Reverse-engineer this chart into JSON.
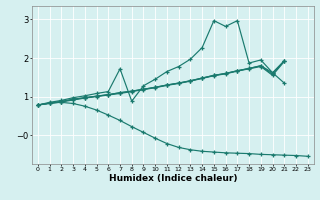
{
  "xlabel": "Humidex (Indice chaleur)",
  "bg_color": "#d6f0f0",
  "grid_color": "#ffffff",
  "line_color": "#1a7a6e",
  "xlim": [
    -0.5,
    23.5
  ],
  "ylim": [
    -0.75,
    3.35
  ],
  "line1_x": [
    0,
    1,
    2,
    3,
    4,
    5,
    6,
    7,
    8,
    9,
    10,
    11,
    12,
    13,
    14,
    15,
    16,
    17,
    18,
    19,
    20,
    21
  ],
  "line1_y": [
    0.78,
    0.85,
    0.9,
    0.97,
    1.02,
    1.08,
    1.13,
    1.72,
    0.88,
    1.28,
    1.45,
    1.65,
    1.78,
    1.97,
    2.27,
    2.97,
    2.82,
    2.97,
    1.87,
    1.95,
    1.62,
    1.35
  ],
  "line2_x": [
    0,
    1,
    2,
    3,
    4,
    5,
    6,
    7,
    8,
    9,
    10,
    11,
    12,
    13,
    14,
    15,
    16,
    17,
    18,
    19,
    20,
    21
  ],
  "line2_y": [
    0.78,
    0.83,
    0.87,
    0.93,
    0.97,
    1.01,
    1.05,
    1.1,
    1.14,
    1.19,
    1.24,
    1.3,
    1.35,
    1.41,
    1.48,
    1.55,
    1.6,
    1.67,
    1.73,
    1.8,
    1.62,
    1.93
  ],
  "line3_x": [
    0,
    1,
    2,
    3,
    4,
    5,
    6,
    7,
    8,
    9,
    10,
    11,
    12,
    13,
    14,
    15,
    16,
    17,
    18,
    19,
    20,
    21
  ],
  "line3_y": [
    0.78,
    0.83,
    0.87,
    0.93,
    0.97,
    1.01,
    1.05,
    1.1,
    1.14,
    1.19,
    1.24,
    1.3,
    1.35,
    1.41,
    1.48,
    1.55,
    1.6,
    1.67,
    1.73,
    1.8,
    1.58,
    1.93
  ],
  "line4_x": [
    0,
    1,
    2,
    3,
    4,
    5,
    6,
    7,
    8,
    9,
    10,
    11,
    12,
    13,
    14,
    15,
    16,
    17,
    18,
    19,
    20,
    21
  ],
  "line4_y": [
    0.78,
    0.82,
    0.86,
    0.91,
    0.96,
    1.0,
    1.04,
    1.08,
    1.13,
    1.18,
    1.23,
    1.29,
    1.34,
    1.4,
    1.47,
    1.54,
    1.59,
    1.66,
    1.72,
    1.78,
    1.55,
    1.91
  ],
  "line5_x": [
    0,
    1,
    2,
    3,
    4,
    5,
    6,
    7,
    8,
    9,
    10,
    11,
    12,
    13,
    14,
    15,
    16,
    17,
    18,
    19,
    20,
    21,
    22,
    23
  ],
  "line5_y": [
    0.78,
    0.83,
    0.85,
    0.82,
    0.75,
    0.65,
    0.52,
    0.38,
    0.22,
    0.07,
    -0.08,
    -0.22,
    -0.32,
    -0.38,
    -0.42,
    -0.44,
    -0.46,
    -0.47,
    -0.48,
    -0.5,
    -0.51,
    -0.52,
    -0.53,
    -0.55
  ]
}
